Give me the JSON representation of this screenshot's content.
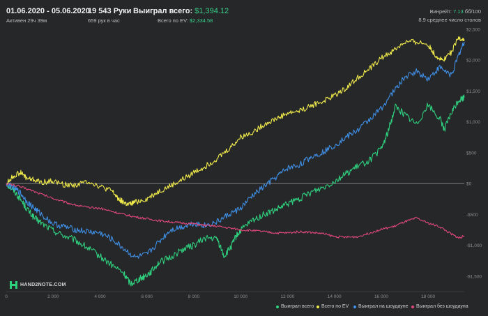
{
  "header": {
    "date_range": "01.06.2020 - 05.06.2020",
    "active": "Активен 29ч 39м",
    "hands": "19 543 Руки",
    "hands_per_hour": "659 рук в час",
    "won_label": "Выиграл всего:",
    "won_value": "$1,394.12",
    "ev_label": "Всего по EV:",
    "ev_value": "$2,334.58",
    "winrate_label": "Винрейт:",
    "winrate_value": "7.13",
    "winrate_suffix": "бб/100",
    "tables": "8.9 среднее число столов"
  },
  "logo_text": "HAND2NOTE.COM",
  "colors": {
    "green": "#2fd17f",
    "yellow": "#f0ea4a",
    "blue": "#3f8fe6",
    "pink": "#e0487a",
    "axis_zero": "#8a8a8a",
    "grid": "#3a3b3d"
  },
  "chart_data": {
    "type": "line",
    "xlim": [
      0,
      19543
    ],
    "ylim": [
      -1750,
      2500
    ],
    "x_ticks": [
      {
        "v": 0,
        "label": "0"
      },
      {
        "v": 2000,
        "label": "2 000"
      },
      {
        "v": 4000,
        "label": "4 000"
      },
      {
        "v": 6000,
        "label": "6 000"
      },
      {
        "v": 8000,
        "label": "8 000"
      },
      {
        "v": 10000,
        "label": "10 000"
      },
      {
        "v": 12000,
        "label": "12 000"
      },
      {
        "v": 14000,
        "label": "14 000"
      },
      {
        "v": 16000,
        "label": "16 000"
      },
      {
        "v": 18000,
        "label": "18 000"
      }
    ],
    "y_ticks": [
      {
        "v": 2500,
        "label": "$2,500"
      },
      {
        "v": 2000,
        "label": "$2,000"
      },
      {
        "v": 1500,
        "label": "$1,500"
      },
      {
        "v": 1000,
        "label": "$1,000"
      },
      {
        "v": 500,
        "label": "$500"
      },
      {
        "v": 0,
        "label": "$0"
      },
      {
        "v": -500,
        "label": "-$500"
      },
      {
        "v": -1000,
        "label": "-$1,000"
      },
      {
        "v": -1500,
        "label": "-$1,500"
      }
    ],
    "series": [
      {
        "name": "Выиграл всего",
        "color": "#2fd17f",
        "x": [
          0,
          300,
          600,
          900,
          1200,
          1500,
          2000,
          2500,
          3000,
          3500,
          4000,
          4500,
          5000,
          5300,
          5600,
          5900,
          6200,
          6500,
          7000,
          7500,
          8000,
          8500,
          9000,
          9300,
          9600,
          9800,
          10000,
          10500,
          11000,
          11500,
          12000,
          12500,
          13000,
          13500,
          14000,
          14500,
          15000,
          15500,
          16000,
          16300,
          16600,
          17000,
          17500,
          18000,
          18500,
          18700,
          19000,
          19300,
          19543
        ],
        "values": [
          0,
          -100,
          -250,
          -420,
          -560,
          -640,
          -760,
          -850,
          -930,
          -1050,
          -1180,
          -1320,
          -1450,
          -1620,
          -1560,
          -1500,
          -1420,
          -1280,
          -1200,
          -1070,
          -1000,
          -880,
          -900,
          -1180,
          -1020,
          -860,
          -760,
          -600,
          -500,
          -430,
          -330,
          -250,
          -140,
          -60,
          40,
          160,
          280,
          380,
          560,
          850,
          1250,
          1120,
          960,
          1280,
          1050,
          880,
          1150,
          1350,
          1394
        ]
      },
      {
        "name": "Всего по EV",
        "color": "#f0ea4a",
        "x": [
          0,
          300,
          600,
          900,
          1200,
          1500,
          2000,
          2500,
          3000,
          3500,
          4000,
          4500,
          4800,
          5000,
          5200,
          5500,
          6000,
          6500,
          7000,
          7500,
          8000,
          8500,
          9000,
          9500,
          10000,
          10500,
          11000,
          11500,
          12000,
          12500,
          13000,
          13500,
          14000,
          14500,
          15000,
          15500,
          16000,
          16500,
          17000,
          17500,
          18000,
          18300,
          18600,
          19000,
          19300,
          19543
        ],
        "values": [
          0,
          120,
          180,
          80,
          60,
          20,
          40,
          -20,
          -20,
          40,
          -50,
          -120,
          -250,
          -300,
          -350,
          -300,
          -250,
          -130,
          -40,
          60,
          180,
          280,
          410,
          560,
          750,
          830,
          960,
          1050,
          1140,
          1180,
          1260,
          1330,
          1430,
          1550,
          1720,
          1860,
          2030,
          2150,
          2290,
          2300,
          2250,
          2080,
          2000,
          2130,
          2360,
          2334
        ]
      },
      {
        "name": "Выиграл на шоудауне",
        "color": "#3f8fe6",
        "x": [
          0,
          300,
          600,
          900,
          1200,
          1500,
          2000,
          2500,
          3000,
          3500,
          4000,
          4500,
          5000,
          5500,
          6000,
          6500,
          7000,
          7500,
          8000,
          8500,
          9000,
          9500,
          10000,
          10500,
          11000,
          11500,
          12000,
          12500,
          13000,
          13500,
          14000,
          14500,
          15000,
          15500,
          16000,
          16500,
          17000,
          17500,
          18000,
          18500,
          19000,
          19300,
          19543
        ],
        "values": [
          0,
          -60,
          -150,
          -300,
          -400,
          -500,
          -650,
          -700,
          -750,
          -780,
          -800,
          -900,
          -1050,
          -1200,
          -1150,
          -950,
          -750,
          -700,
          -640,
          -680,
          -620,
          -500,
          -400,
          -200,
          -50,
          100,
          250,
          300,
          430,
          510,
          620,
          750,
          870,
          1040,
          1220,
          1480,
          1720,
          1820,
          1700,
          1880,
          1760,
          2080,
          2300
        ]
      },
      {
        "name": "Выиграл без шоудауна",
        "color": "#e0487a",
        "x": [
          0,
          500,
          1000,
          1500,
          2000,
          2500,
          3000,
          3500,
          4000,
          4500,
          5000,
          5500,
          6000,
          6500,
          7000,
          7500,
          8000,
          8500,
          9000,
          9500,
          10000,
          10500,
          11000,
          11500,
          12000,
          12500,
          13000,
          13500,
          14000,
          14500,
          15000,
          15500,
          16000,
          16500,
          17000,
          17500,
          18000,
          18500,
          19000,
          19300,
          19543
        ],
        "values": [
          0,
          -40,
          -100,
          -170,
          -240,
          -300,
          -350,
          -390,
          -400,
          -450,
          -500,
          -540,
          -570,
          -600,
          -620,
          -640,
          -650,
          -680,
          -690,
          -720,
          -750,
          -760,
          -780,
          -800,
          -800,
          -780,
          -790,
          -810,
          -860,
          -870,
          -860,
          -800,
          -740,
          -700,
          -620,
          -560,
          -640,
          -700,
          -820,
          -880,
          -850
        ]
      }
    ]
  }
}
